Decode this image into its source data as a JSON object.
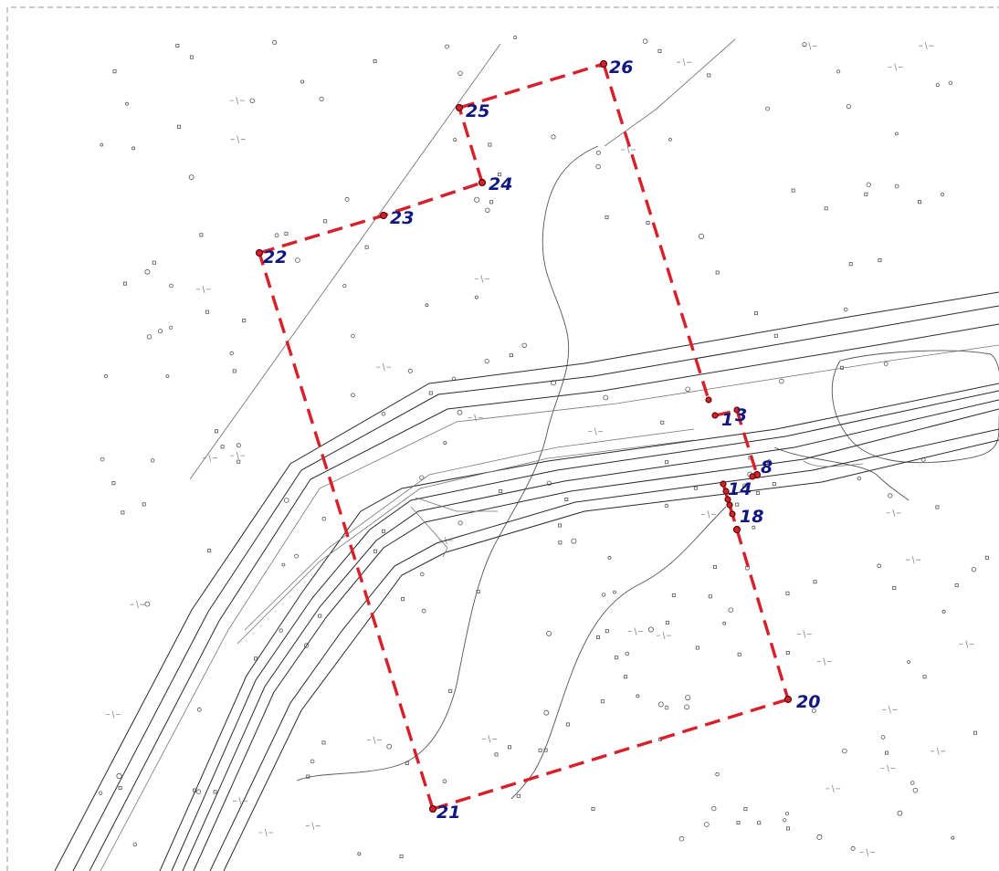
{
  "colors": {
    "boundary": "#d8202a",
    "label": "#101880",
    "linework": "#2a2a2a"
  },
  "boundary_points": [
    {
      "id": "1",
      "label": "1"
    },
    {
      "id": "3",
      "label": "3"
    },
    {
      "id": "8",
      "label": "8"
    },
    {
      "id": "14",
      "label": "14"
    },
    {
      "id": "18",
      "label": "18"
    },
    {
      "id": "20",
      "label": "20"
    },
    {
      "id": "21",
      "label": "21"
    },
    {
      "id": "22",
      "label": "22"
    },
    {
      "id": "23",
      "label": "23"
    },
    {
      "id": "24",
      "label": "24"
    },
    {
      "id": "25",
      "label": "25"
    },
    {
      "id": "26",
      "label": "26"
    }
  ]
}
